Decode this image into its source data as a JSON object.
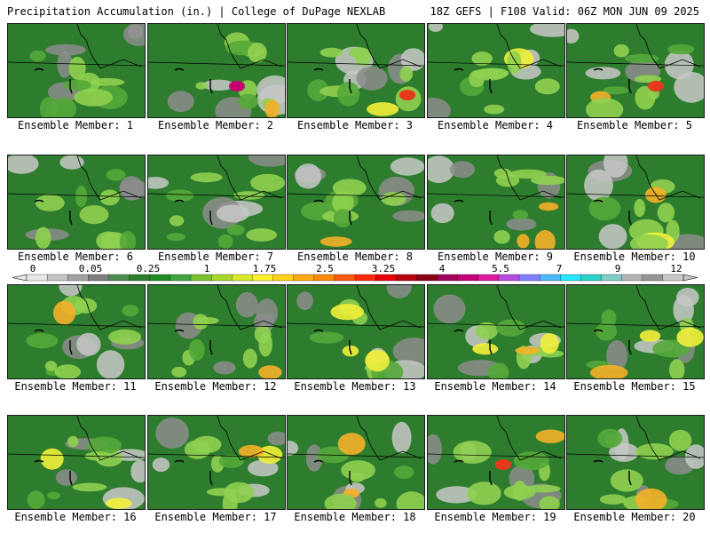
{
  "header": {
    "title_left": "Precipitation Accumulation (in.) | College of DuPage NEXLAB",
    "title_right": "18Z GEFS | F108 Valid: 06Z MON JUN 09 2025"
  },
  "panel_label_prefix": "Ensemble Member: ",
  "members": [
    1,
    2,
    3,
    4,
    5,
    6,
    7,
    8,
    9,
    10,
    11,
    12,
    13,
    14,
    15,
    16,
    17,
    18,
    19,
    20
  ],
  "legend": {
    "ticks": [
      "0",
      "0.05",
      "0.25",
      "1",
      "1.75",
      "2.5",
      "3.25",
      "4",
      "5.5",
      "7",
      "9",
      "12"
    ],
    "colors": [
      "#e6e6e6",
      "#c4c4c4",
      "#a3a3a3",
      "#7f7f7f",
      "#4d8c4d",
      "#2e7d2e",
      "#1f8a1f",
      "#3fa33f",
      "#7ac230",
      "#a8d62a",
      "#d9e82a",
      "#fff12a",
      "#ffd21e",
      "#ffaa14",
      "#ff8a0a",
      "#ff5a0a",
      "#ff2a0a",
      "#e6000a",
      "#b8000f",
      "#8c0014",
      "#a0005a",
      "#c8007a",
      "#e01aa0",
      "#b84ce0",
      "#7f7fff",
      "#4cb8ff",
      "#2ae6ff",
      "#2ad2c8",
      "#7fcdc8",
      "#b4b4b4",
      "#969696",
      "#c8c8c8"
    ]
  },
  "palette": {
    "base_green": "#2e7d2e",
    "mid_green": "#55a83a",
    "light_green": "#8fd050",
    "yellow": "#f2ef3a",
    "orange": "#f4b028",
    "red": "#e83a1a",
    "magenta": "#c40070",
    "gray": "#8c8c8c",
    "light_gray": "#c8c8c8"
  }
}
